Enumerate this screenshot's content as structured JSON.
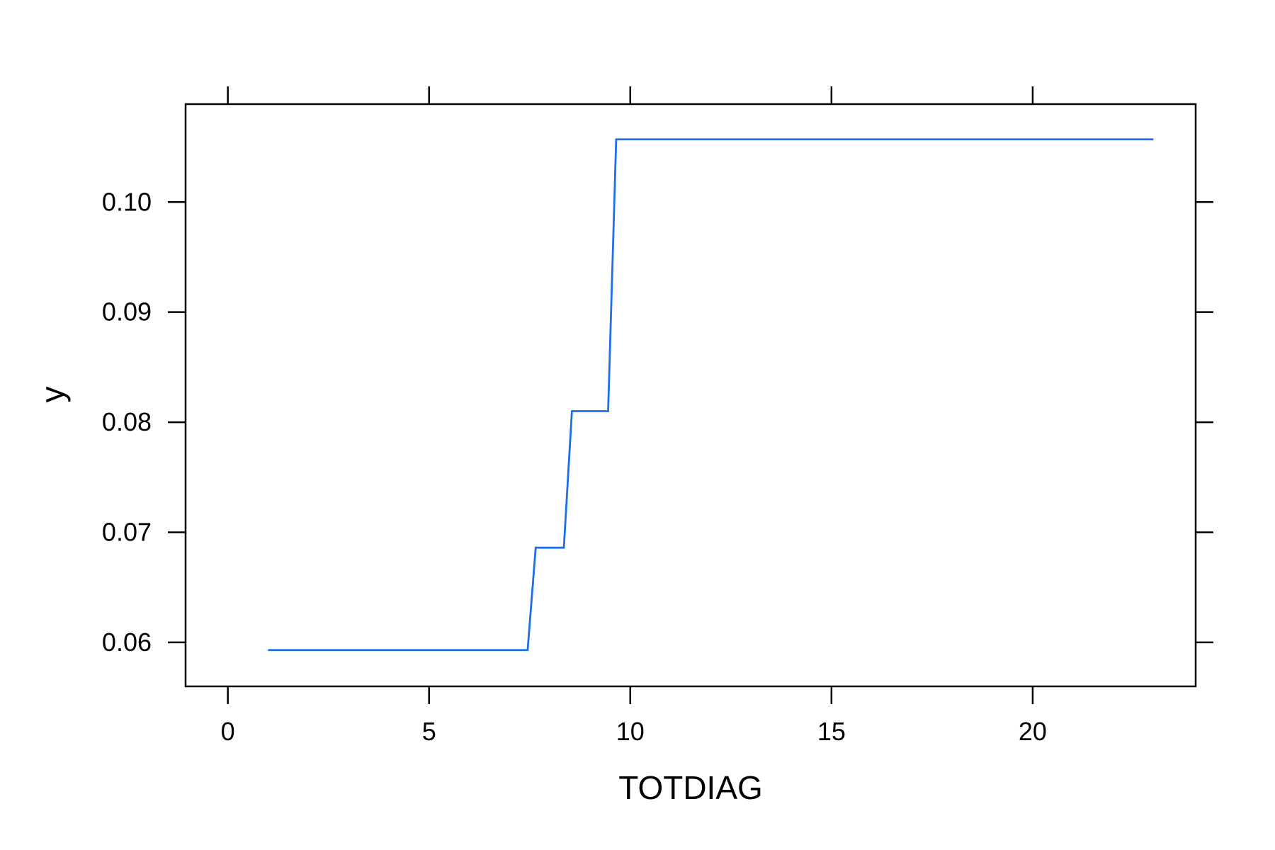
{
  "chart_data": {
    "type": "line",
    "title": "",
    "xlabel": "TOTDIAG",
    "ylabel": "y",
    "xlim": [
      -1.05,
      24.05
    ],
    "ylim": [
      0.056,
      0.1089
    ],
    "x_ticks": [
      0,
      5,
      10,
      15,
      20
    ],
    "x_tick_labels": [
      "0",
      "5",
      "10",
      "15",
      "20"
    ],
    "y_ticks": [
      0.06,
      0.07,
      0.08,
      0.09,
      0.1
    ],
    "y_tick_labels": [
      "0.06",
      "0.07",
      "0.08",
      "0.09",
      "0.10"
    ],
    "grid": false,
    "line_color": "#1f6fe8",
    "series": [
      {
        "x": [
          1.0,
          7.45,
          7.65,
          8.35,
          8.55,
          9.45,
          9.65,
          23.0
        ],
        "y": [
          0.0593,
          0.0593,
          0.0686,
          0.0686,
          0.081,
          0.081,
          0.1057,
          0.1057
        ]
      }
    ]
  }
}
